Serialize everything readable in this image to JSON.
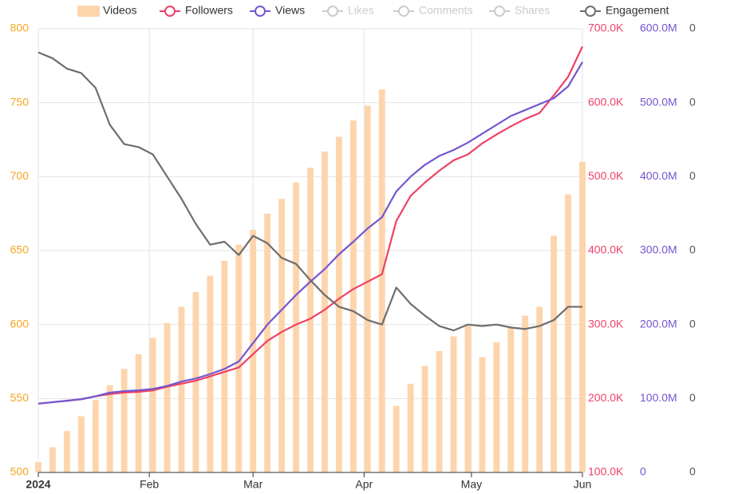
{
  "chart_data": {
    "type": "bar-line",
    "x": [
      0,
      4,
      8,
      12,
      16,
      20,
      24,
      28,
      32,
      36,
      40,
      44,
      48,
      52,
      56,
      60,
      64,
      68,
      72,
      76,
      80,
      84,
      88,
      92,
      96,
      100,
      104,
      108,
      112,
      116,
      120,
      124,
      128,
      132,
      136,
      140,
      144,
      148,
      152
    ],
    "xlim": [
      0,
      152
    ],
    "xticks": [
      {
        "value": 0,
        "label": "2024"
      },
      {
        "value": 31,
        "label": "Feb"
      },
      {
        "value": 60,
        "label": "Mar"
      },
      {
        "value": 91,
        "label": "Apr"
      },
      {
        "value": 121,
        "label": "May"
      },
      {
        "value": 152,
        "label": "Jun"
      }
    ],
    "ylim": [
      500,
      800
    ],
    "yticks": [
      500,
      550,
      600,
      650,
      700,
      750,
      800
    ],
    "y2lim": [
      100000,
      700000
    ],
    "y2ticks": [
      {
        "value": 100000,
        "label": "100.0K"
      },
      {
        "value": 200000,
        "label": "200.0K"
      },
      {
        "value": 300000,
        "label": "300.0K"
      },
      {
        "value": 400000,
        "label": "400.0K"
      },
      {
        "value": 500000,
        "label": "500.0K"
      },
      {
        "value": 600000,
        "label": "600.0K"
      },
      {
        "value": 700000,
        "label": "700.0K"
      }
    ],
    "y3lim": [
      0,
      600000000
    ],
    "y3ticks": [
      0,
      {
        "value": 100000000,
        "label": "100.0M"
      },
      {
        "value": 200000000,
        "label": "200.0M"
      },
      {
        "value": 300000000,
        "label": "300.0M"
      },
      {
        "value": 400000000,
        "label": "400.0M"
      },
      {
        "value": 500000000,
        "label": "500.0M"
      },
      {
        "value": 600000000,
        "label": "600.0M"
      }
    ],
    "y4ticks": [
      0,
      0,
      0,
      0,
      0,
      0,
      0
    ],
    "grid": true,
    "series": [
      {
        "name": "Videos",
        "kind": "bar",
        "axis": "y",
        "color": "#fdd5ad",
        "values": [
          507,
          517,
          528,
          538,
          549,
          559,
          570,
          580,
          591,
          601,
          612,
          622,
          633,
          643,
          654,
          664,
          675,
          685,
          696,
          706,
          717,
          727,
          738,
          748,
          759,
          545,
          560,
          572,
          582,
          592,
          600,
          578,
          588,
          598,
          606,
          612,
          660,
          688,
          710
        ]
      },
      {
        "name": "Followers",
        "kind": "line",
        "axis": "y2",
        "color": "#ee4266",
        "values": [
          193000,
          195000,
          197000,
          199000,
          203000,
          206000,
          208000,
          209000,
          211000,
          216000,
          220000,
          224000,
          230000,
          236000,
          242000,
          260000,
          278000,
          290000,
          300000,
          308000,
          320000,
          335000,
          348000,
          358000,
          368000,
          440000,
          474000,
          492000,
          508000,
          522000,
          530000,
          545000,
          557000,
          568000,
          578000,
          586000,
          610000,
          635000,
          676000
        ]
      },
      {
        "name": "Views",
        "kind": "line",
        "axis": "y3",
        "color": "#7456cf",
        "values": [
          93000000,
          95000000,
          97000000,
          99000000,
          103000000,
          108000000,
          110000000,
          111000000,
          113000000,
          117000000,
          123000000,
          127000000,
          133000000,
          140000000,
          150000000,
          175000000,
          200000000,
          220000000,
          240000000,
          258000000,
          275000000,
          295000000,
          312000000,
          330000000,
          345000000,
          380000000,
          400000000,
          416000000,
          428000000,
          436000000,
          446000000,
          458000000,
          470000000,
          482000000,
          490000000,
          498000000,
          506000000,
          522000000,
          555000000
        ]
      },
      {
        "name": "Likes",
        "kind": "hidden",
        "color": "#cccccc"
      },
      {
        "name": "Comments",
        "kind": "hidden",
        "color": "#cccccc"
      },
      {
        "name": "Shares",
        "kind": "hidden",
        "color": "#cccccc"
      },
      {
        "name": "Engagement",
        "kind": "line",
        "axis": "y",
        "color": "#6e6e6e",
        "values": [
          784,
          780,
          773,
          770,
          760,
          735,
          722,
          720,
          715,
          700,
          685,
          668,
          654,
          656,
          647,
          660,
          655,
          645,
          641,
          630,
          620,
          612,
          609,
          603,
          600,
          625,
          614,
          606,
          599,
          596,
          600,
          599,
          600,
          598,
          597,
          599,
          603,
          612,
          612
        ]
      }
    ]
  }
}
